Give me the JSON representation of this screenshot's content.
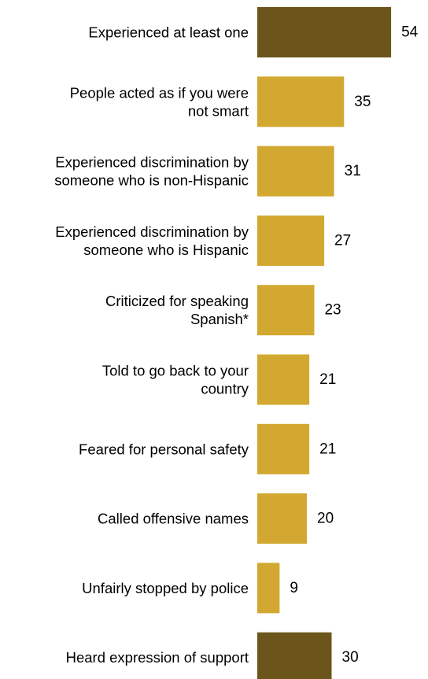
{
  "chart_data": {
    "type": "bar",
    "orientation": "horizontal",
    "categories": [
      [
        "Experienced at least one"
      ],
      [
        "People acted as if you were",
        "not smart"
      ],
      [
        "Experienced discrimination by",
        "someone who is non-Hispanic"
      ],
      [
        "Experienced discrimination by",
        "someone who is Hispanic"
      ],
      [
        "Criticized for speaking",
        "Spanish*"
      ],
      [
        "Told to go back to your",
        "country"
      ],
      [
        "Feared for personal safety"
      ],
      [
        "Called offensive names"
      ],
      [
        "Unfairly stopped by police"
      ],
      [
        "Heard expression of support"
      ]
    ],
    "values": [
      54,
      35,
      31,
      27,
      23,
      21,
      21,
      20,
      9,
      30
    ],
    "value_labels": [
      "54",
      "35",
      "31",
      "27",
      "23",
      "21",
      "21",
      "20",
      "9",
      "30"
    ],
    "bar_colors": [
      "#6b551b",
      "#d2a830",
      "#d2a830",
      "#d2a830",
      "#d2a830",
      "#d2a830",
      "#d2a830",
      "#d2a830",
      "#d2a830",
      "#6b551b"
    ],
    "grid": false,
    "legend": "none"
  }
}
